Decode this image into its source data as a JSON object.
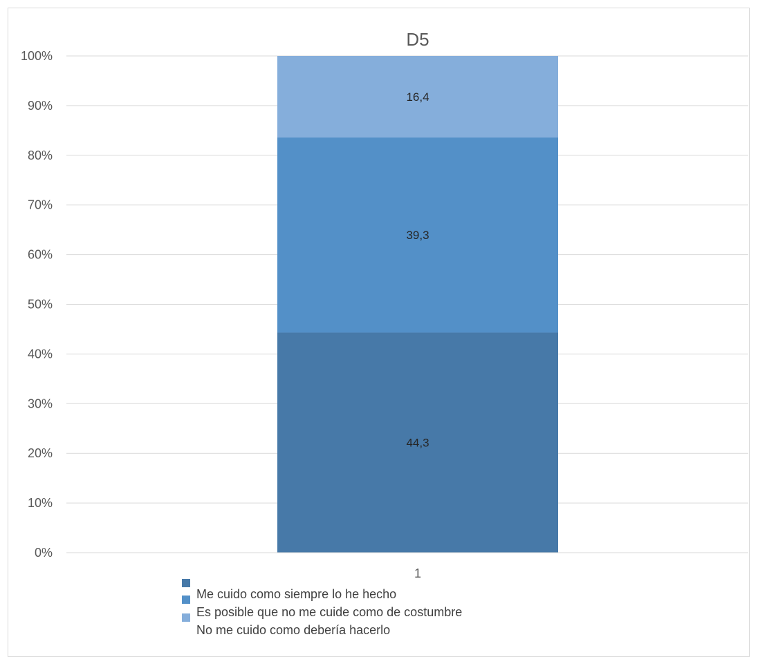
{
  "chart_data": {
    "type": "bar",
    "stacked": true,
    "title": "D5",
    "categories": [
      "1"
    ],
    "series": [
      {
        "name": "Me cuido como siempre lo he hecho",
        "values": [
          44.3
        ],
        "color": "#4779a8"
      },
      {
        "name": "Es posible que no me cuide como de costumbre",
        "values": [
          39.3
        ],
        "color": "#5390c8"
      },
      {
        "name": "No me cuido como debería hacerlo",
        "values": [
          16.4
        ],
        "color": "#85aedb"
      }
    ],
    "data_labels": [
      "44,3",
      "39,3",
      "16,4"
    ],
    "y_ticks": [
      "0%",
      "10%",
      "20%",
      "30%",
      "40%",
      "50%",
      "60%",
      "70%",
      "80%",
      "90%",
      "100%"
    ],
    "ylim": [
      0,
      100
    ],
    "grid": true,
    "legend_position": "bottom"
  }
}
